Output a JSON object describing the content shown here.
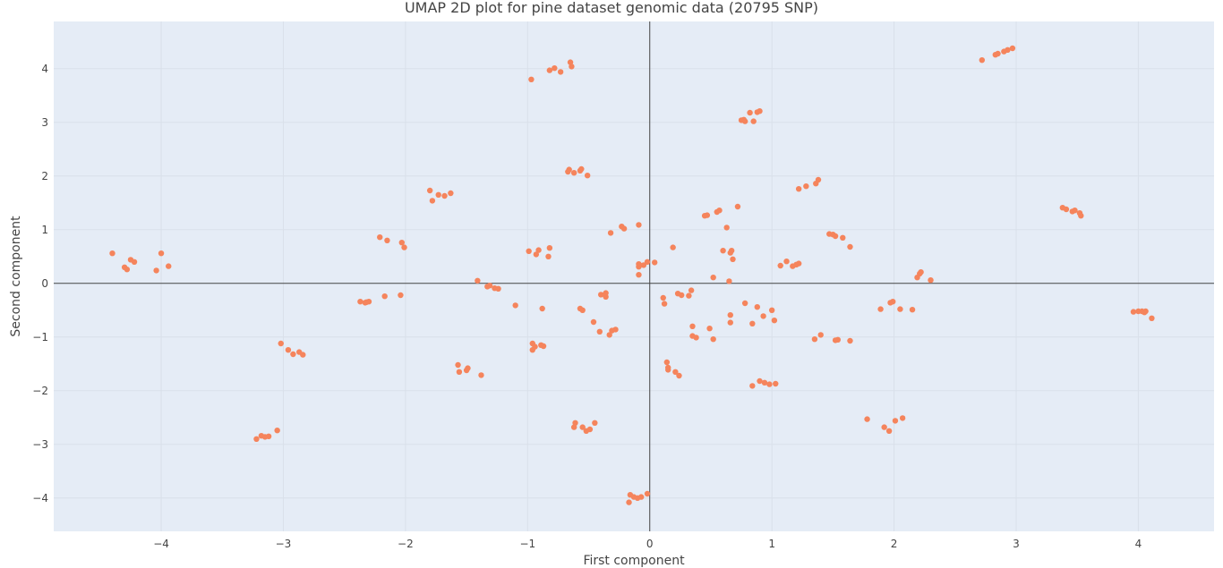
{
  "chart_data": {
    "type": "scatter",
    "title": "UMAP 2D plot for pine dataset genomic data (20795 SNP)",
    "xlabel": "First component",
    "ylabel": "Second component",
    "xlim": [
      -4.88,
      4.62
    ],
    "ylim": [
      -4.62,
      4.88
    ],
    "x_ticks": [
      -4,
      -3,
      -2,
      -1,
      0,
      1,
      2,
      3,
      4
    ],
    "y_ticks": [
      -4,
      -3,
      -2,
      -1,
      0,
      1,
      2,
      3,
      4
    ],
    "x_tick_labels": [
      "−4",
      "−3",
      "−2",
      "−1",
      "0",
      "1",
      "2",
      "3",
      "4"
    ],
    "y_tick_labels": [
      "−4",
      "−3",
      "−2",
      "−1",
      "0",
      "1",
      "2",
      "3",
      "4"
    ],
    "grid": true,
    "zero_lines": true,
    "colors": {
      "background": "#e5ecf6",
      "grid": "#d9e0ea",
      "marker": "#f5845c",
      "zero_line": "#444444"
    },
    "points": [
      [
        -4.4,
        0.56
      ],
      [
        -4.3,
        0.3
      ],
      [
        -4.28,
        0.26
      ],
      [
        -4.25,
        0.44
      ],
      [
        -4.22,
        0.4
      ],
      [
        -4.04,
        0.24
      ],
      [
        -4.0,
        0.56
      ],
      [
        -3.94,
        0.32
      ],
      [
        -3.22,
        -2.9
      ],
      [
        -3.18,
        -2.84
      ],
      [
        -3.15,
        -2.86
      ],
      [
        -3.12,
        -2.85
      ],
      [
        -3.05,
        -2.74
      ],
      [
        -3.02,
        -1.12
      ],
      [
        -2.96,
        -1.24
      ],
      [
        -2.92,
        -1.32
      ],
      [
        -2.87,
        -1.28
      ],
      [
        -2.84,
        -1.33
      ],
      [
        -2.37,
        -0.34
      ],
      [
        -2.33,
        -0.36
      ],
      [
        -2.3,
        -0.34
      ],
      [
        -2.32,
        -0.35
      ],
      [
        -2.21,
        0.86
      ],
      [
        -2.15,
        0.8
      ],
      [
        -2.17,
        -0.24
      ],
      [
        -2.04,
        -0.22
      ],
      [
        -2.03,
        0.76
      ],
      [
        -2.01,
        0.67
      ],
      [
        -1.8,
        1.73
      ],
      [
        -1.78,
        1.54
      ],
      [
        -1.73,
        1.65
      ],
      [
        -1.68,
        1.63
      ],
      [
        -1.63,
        1.68
      ],
      [
        -1.57,
        -1.52
      ],
      [
        -1.56,
        -1.65
      ],
      [
        -1.5,
        -1.62
      ],
      [
        -1.49,
        -1.58
      ],
      [
        -1.38,
        -1.71
      ],
      [
        -1.41,
        0.05
      ],
      [
        -1.33,
        -0.06
      ],
      [
        -1.31,
        -0.04
      ],
      [
        -1.27,
        -0.09
      ],
      [
        -1.24,
        -0.1
      ],
      [
        -1.1,
        -0.41
      ],
      [
        -0.99,
        0.6
      ],
      [
        -0.96,
        -1.12
      ],
      [
        -0.96,
        -1.24
      ],
      [
        -0.94,
        -1.18
      ],
      [
        -0.93,
        0.54
      ],
      [
        -0.91,
        0.62
      ],
      [
        -0.89,
        -1.15
      ],
      [
        -0.87,
        -1.17
      ],
      [
        -0.88,
        -0.47
      ],
      [
        -0.83,
        0.5
      ],
      [
        -0.82,
        0.66
      ],
      [
        -0.97,
        3.8
      ],
      [
        -0.82,
        3.97
      ],
      [
        -0.78,
        4.01
      ],
      [
        -0.73,
        3.94
      ],
      [
        -0.65,
        4.12
      ],
      [
        -0.64,
        4.04
      ],
      [
        -0.67,
        2.08
      ],
      [
        -0.66,
        2.12
      ],
      [
        -0.62,
        2.06
      ],
      [
        -0.57,
        2.1
      ],
      [
        -0.56,
        2.13
      ],
      [
        -0.51,
        2.01
      ],
      [
        -0.57,
        -0.47
      ],
      [
        -0.55,
        -0.5
      ],
      [
        -0.61,
        -2.6
      ],
      [
        -0.62,
        -2.68
      ],
      [
        -0.55,
        -2.68
      ],
      [
        -0.52,
        -2.75
      ],
      [
        -0.49,
        -2.72
      ],
      [
        -0.45,
        -2.6
      ],
      [
        -0.46,
        -0.72
      ],
      [
        -0.41,
        -0.9
      ],
      [
        -0.4,
        -0.21
      ],
      [
        -0.36,
        -0.18
      ],
      [
        -0.36,
        -0.25
      ],
      [
        -0.33,
        -0.96
      ],
      [
        -0.31,
        -0.88
      ],
      [
        -0.28,
        -0.86
      ],
      [
        -0.32,
        0.94
      ],
      [
        -0.23,
        1.06
      ],
      [
        -0.21,
        1.02
      ],
      [
        -0.09,
        1.09
      ],
      [
        -0.17,
        -4.08
      ],
      [
        -0.16,
        -3.94
      ],
      [
        -0.13,
        -3.98
      ],
      [
        -0.1,
        -4.0
      ],
      [
        -0.07,
        -3.98
      ],
      [
        -0.02,
        -3.92
      ],
      [
        -0.09,
        0.36
      ],
      [
        -0.09,
        0.31
      ],
      [
        -0.09,
        0.16
      ],
      [
        -0.05,
        0.34
      ],
      [
        -0.02,
        0.4
      ],
      [
        0.04,
        0.39
      ],
      [
        0.11,
        -0.27
      ],
      [
        0.12,
        -0.38
      ],
      [
        0.14,
        -1.47
      ],
      [
        0.15,
        -1.57
      ],
      [
        0.15,
        -1.61
      ],
      [
        0.19,
        0.67
      ],
      [
        0.21,
        -1.65
      ],
      [
        0.24,
        -1.72
      ],
      [
        0.23,
        -0.19
      ],
      [
        0.26,
        -0.22
      ],
      [
        0.32,
        -0.23
      ],
      [
        0.34,
        -0.13
      ],
      [
        0.35,
        -0.8
      ],
      [
        0.35,
        -0.98
      ],
      [
        0.38,
        -1.01
      ],
      [
        0.45,
        1.26
      ],
      [
        0.47,
        1.27
      ],
      [
        0.49,
        -0.84
      ],
      [
        0.52,
        0.11
      ],
      [
        0.52,
        -1.04
      ],
      [
        0.55,
        1.33
      ],
      [
        0.57,
        1.36
      ],
      [
        0.6,
        0.61
      ],
      [
        0.63,
        1.04
      ],
      [
        0.65,
        0.04
      ],
      [
        0.66,
        -0.59
      ],
      [
        0.66,
        -0.73
      ],
      [
        0.66,
        0.57
      ],
      [
        0.67,
        0.61
      ],
      [
        0.68,
        0.45
      ],
      [
        0.72,
        1.43
      ],
      [
        0.75,
        3.04
      ],
      [
        0.77,
        3.05
      ],
      [
        0.78,
        3.02
      ],
      [
        0.78,
        -0.37
      ],
      [
        0.82,
        3.18
      ],
      [
        0.84,
        -0.75
      ],
      [
        0.85,
        3.02
      ],
      [
        0.84,
        -1.91
      ],
      [
        0.88,
        -0.44
      ],
      [
        0.88,
        3.19
      ],
      [
        0.9,
        3.21
      ],
      [
        0.9,
        -1.82
      ],
      [
        0.93,
        -0.61
      ],
      [
        0.94,
        -1.85
      ],
      [
        0.98,
        -1.88
      ],
      [
        1.0,
        -0.5
      ],
      [
        1.03,
        -1.87
      ],
      [
        1.02,
        -0.69
      ],
      [
        1.07,
        0.33
      ],
      [
        1.12,
        0.41
      ],
      [
        1.17,
        0.32
      ],
      [
        1.2,
        0.35
      ],
      [
        1.22,
        0.37
      ],
      [
        1.22,
        1.76
      ],
      [
        1.28,
        1.81
      ],
      [
        1.36,
        1.86
      ],
      [
        1.38,
        1.93
      ],
      [
        1.35,
        -1.04
      ],
      [
        1.4,
        -0.96
      ],
      [
        1.47,
        0.92
      ],
      [
        1.5,
        0.91
      ],
      [
        1.52,
        0.88
      ],
      [
        1.52,
        -1.06
      ],
      [
        1.54,
        -1.05
      ],
      [
        1.58,
        0.85
      ],
      [
        1.64,
        0.68
      ],
      [
        1.64,
        -1.07
      ],
      [
        1.78,
        -2.53
      ],
      [
        1.89,
        -0.48
      ],
      [
        1.92,
        -2.68
      ],
      [
        1.96,
        -2.75
      ],
      [
        1.97,
        -0.36
      ],
      [
        1.99,
        -0.34
      ],
      [
        2.01,
        -2.56
      ],
      [
        2.05,
        -0.48
      ],
      [
        2.07,
        -2.51
      ],
      [
        2.15,
        -0.49
      ],
      [
        2.19,
        0.11
      ],
      [
        2.21,
        0.18
      ],
      [
        2.22,
        0.21
      ],
      [
        2.3,
        0.06
      ],
      [
        2.72,
        4.16
      ],
      [
        2.83,
        4.26
      ],
      [
        2.85,
        4.28
      ],
      [
        2.9,
        4.32
      ],
      [
        2.93,
        4.35
      ],
      [
        2.97,
        4.38
      ],
      [
        3.38,
        1.41
      ],
      [
        3.41,
        1.38
      ],
      [
        3.46,
        1.34
      ],
      [
        3.48,
        1.36
      ],
      [
        3.52,
        1.31
      ],
      [
        3.53,
        1.26
      ],
      [
        3.96,
        -0.53
      ],
      [
        4.0,
        -0.52
      ],
      [
        4.03,
        -0.52
      ],
      [
        4.05,
        -0.54
      ],
      [
        4.06,
        -0.52
      ],
      [
        4.11,
        -0.65
      ]
    ]
  }
}
